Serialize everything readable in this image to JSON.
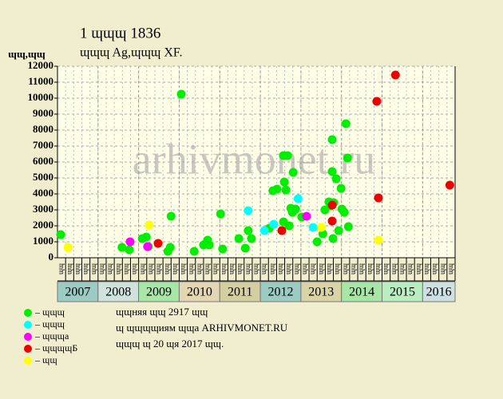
{
  "chart_data": {
    "type": "scatter",
    "title": "1 ɰɰɰ 1836",
    "subtitle": "ɰɰɰ Ag,ɰɰɰ XF.",
    "y_label": "ɰɰ,ɰɰ",
    "watermark": "arhivmonet.ru",
    "notes": [
      "ɰɰняя ɰɰ 2917 ɰɰ",
      "ɰ ɰɰɰɰиям ɰɰа ARHIVMONET.RU",
      "ɰɰɰ ɰ 20 ɰя 2017 ɰɰ."
    ],
    "ylim": [
      0,
      12000
    ],
    "yticks": [
      0,
      1000,
      2000,
      3000,
      4000,
      5000,
      6000,
      7000,
      8000,
      9000,
      10000,
      11000,
      12000
    ],
    "xlim": [
      2007,
      2016.8
    ],
    "years": [
      2007,
      2008,
      2009,
      2010,
      2011,
      2012,
      2013,
      2014,
      2015,
      2016
    ],
    "year_colors": [
      "#9ccbc4",
      "#cfe3dc",
      "#a8e6a8",
      "#e3d6b2",
      "#d4cfa0",
      "#9ccbc4",
      "#d9d3a6",
      "#a8e6a8",
      "#b8eec0",
      "#cfe0e4"
    ],
    "x_labels": [
      "ɰɰ",
      "ɰɰ",
      "ɰɰ",
      "ɰɰ",
      "ɰɰ",
      "ɰɰ",
      "ɰɰ",
      "ɰɰ",
      "ɰɰ",
      "ɰɰ",
      "ɰɰ",
      "ɰɰ",
      "ɰɰ",
      "ɰɰ",
      "ɰɰ",
      "ɰɰ",
      "ɰɰ",
      "ɰɰ",
      "ɰɰ",
      "ɰɰ",
      "ɰɰ",
      "ɰɰ",
      "ɰɰ",
      "ɰɰ",
      "ɰɰ",
      "ɰɰ",
      "ɰɰ",
      "ɰɰ",
      "ɰɰ",
      "ɰɰ",
      "ɰɰ",
      "ɰɰ",
      "ɰɰ",
      "ɰɰ",
      "ɰɰ",
      "ɰɰ",
      "ɰɰ",
      "ɰɰ",
      "ɰɰ",
      "ɰɰ",
      "ɰɰ",
      "ɰɰ",
      "ɰɰ",
      "ɰɰ",
      "ɰɰ",
      "ɰɰ",
      "ɰɰ",
      "ɰɰ",
      "ɰɰ"
    ],
    "grid": true,
    "series": [
      {
        "name": "– ɰɰɰ",
        "color": "#00ee00",
        "x": [
          2007.08,
          2008.59,
          2008.77,
          2009.09,
          2009.19,
          2009.24,
          2009.72,
          2009.78,
          2009.8,
          2010.05,
          2010.37,
          2010.6,
          2010.66,
          2010.7,
          2010.74,
          2011.02,
          2011.07,
          2011.47,
          2011.63,
          2011.7,
          2011.78,
          2012.22,
          2012.31,
          2012.41,
          2012.57,
          2012.59,
          2012.63,
          2012.67,
          2012.71,
          2012.75,
          2012.79,
          2012.81,
          2012.87,
          2013.02,
          2012.57,
          2013.4,
          2013.54,
          2013.59,
          2013.69,
          2013.73,
          2013.77,
          2013.77,
          2013.79,
          2013.81,
          2013.87,
          2013.93,
          2013.99,
          2014.01,
          2014.07,
          2014.11,
          2014.15,
          2014.17
        ],
        "values": [
          1450,
          650,
          500,
          1200,
          1300,
          700,
          400,
          650,
          2600,
          10250,
          400,
          800,
          900,
          1100,
          800,
          2750,
          550,
          1200,
          600,
          1700,
          1200,
          1850,
          4200,
          4300,
          6400,
          4750,
          4250,
          6400,
          2000,
          3100,
          2850,
          5350,
          3050,
          2550,
          2250,
          1000,
          1500,
          3000,
          3500,
          3250,
          7400,
          5400,
          1200,
          3450,
          4950,
          1700,
          4350,
          3050,
          2850,
          8400,
          6250,
          1950
        ]
      },
      {
        "name": "– ɰɰɰ",
        "color": "#00ffff",
        "x": [
          2011.7,
          2012.1,
          2012.33,
          2012.93,
          2013.3
        ],
        "values": [
          2950,
          1700,
          2100,
          3700,
          1900
        ]
      },
      {
        "name": "– ɰɰɰа",
        "color": "#ff00ff",
        "x": [
          2008.79,
          2009.22,
          2013.14
        ],
        "values": [
          1000,
          700,
          2600
        ]
      },
      {
        "name": "– ɰɰɰɰБ",
        "color": "#ee0000",
        "x": [
          2009.48,
          2012.53,
          2013.77,
          2013.77,
          2014.87,
          2014.91,
          2015.33,
          2016.67
        ],
        "values": [
          900,
          1700,
          3300,
          2300,
          9800,
          3750,
          11450,
          4550
        ]
      },
      {
        "name": "– ɰɰ",
        "color": "#ffff00",
        "x": [
          2007.26,
          2009.26,
          2013.5,
          2014.91
        ],
        "values": [
          650,
          2050,
          1900,
          1100
        ]
      }
    ]
  }
}
